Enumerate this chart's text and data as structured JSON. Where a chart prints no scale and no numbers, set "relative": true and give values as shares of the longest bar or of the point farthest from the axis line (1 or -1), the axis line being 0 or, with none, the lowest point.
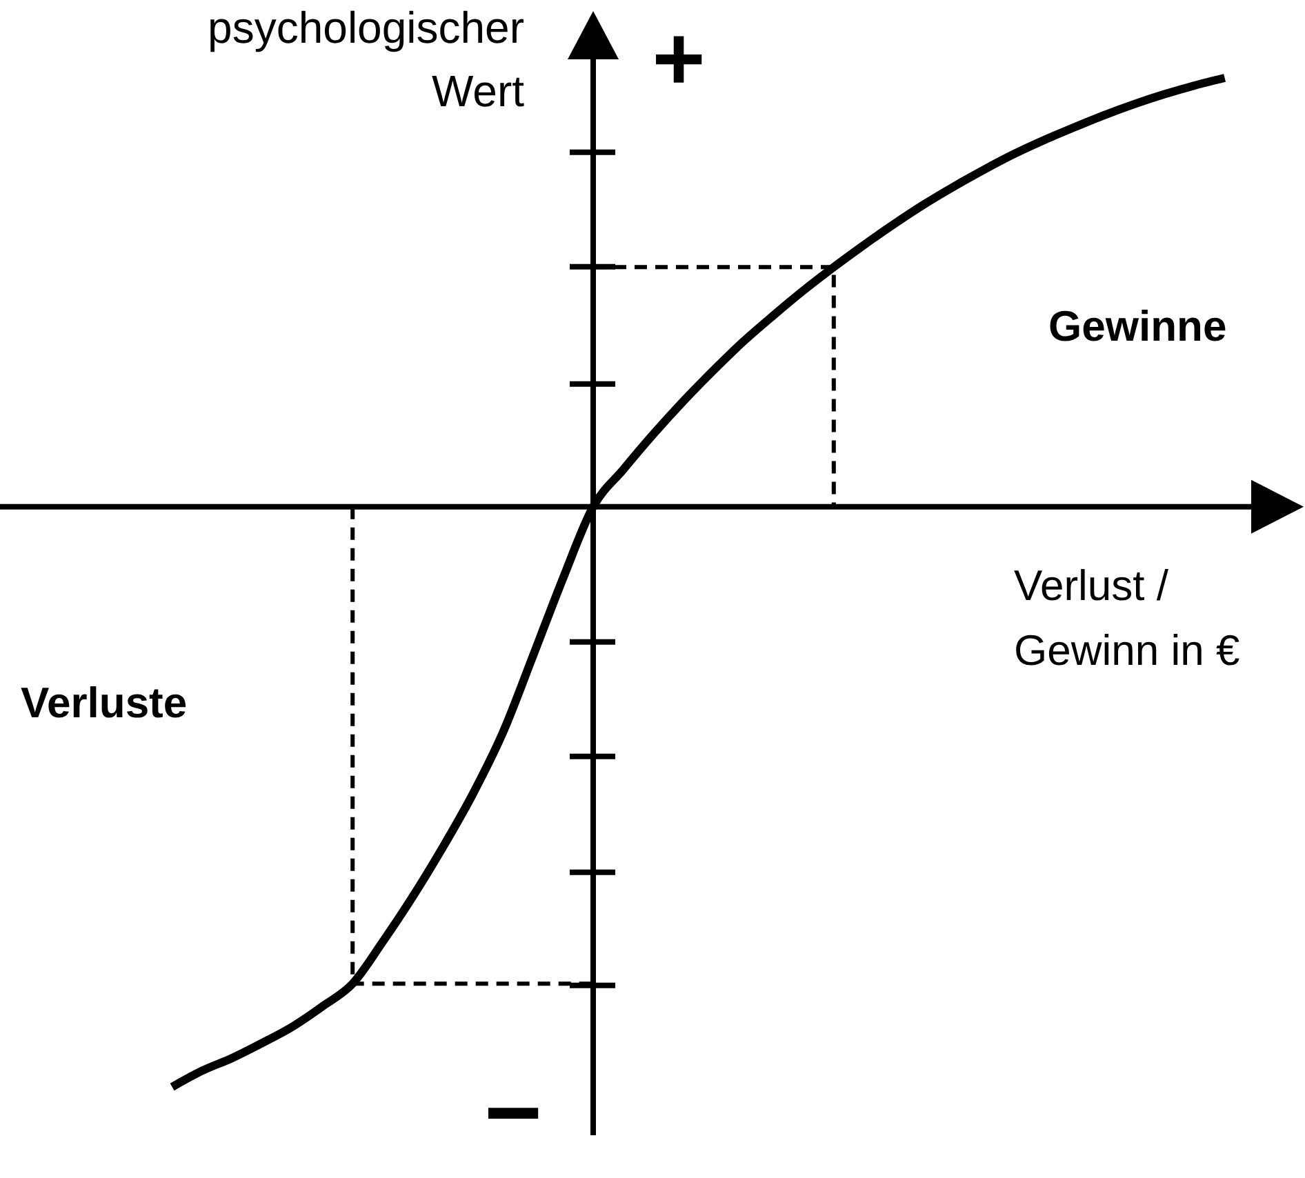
{
  "chart_data": {
    "type": "line",
    "relative": true,
    "xlabel": "Verlust /\nGewinn in €",
    "ylabel": "psychologischer\nWert",
    "annotations": [
      "+",
      "−",
      "Gewinne",
      "Verluste"
    ],
    "categories": [
      null,
      null,
      null,
      null,
      null,
      null,
      null,
      null,
      null,
      null,
      null,
      null,
      null,
      null,
      null,
      null,
      null,
      null,
      null,
      null,
      null,
      null,
      null,
      null,
      null,
      null,
      null,
      null,
      null,
      null,
      null,
      null,
      null,
      null,
      null,
      null
    ],
    "series": [
      {
        "color": "#000000",
        "values": [
          -1,
          -0.972,
          -0.95,
          -0.924,
          -0.896,
          -0.861,
          -0.822,
          -0.75,
          -0.672,
          -0.587,
          -0.495,
          -0.389,
          -0.257,
          -0.123,
          0,
          0.064,
          0.125,
          0.182,
          0.235,
          0.285,
          0.33,
          0.373,
          0.413,
          0.451,
          0.487,
          0.521,
          0.552,
          0.581,
          0.608,
          0.632,
          0.654,
          0.675,
          0.694,
          0.711,
          0.726,
          0.739
        ]
      },
      {
        "type": "step",
        "color": "#000000",
        "line_style": "dashed",
        "values": [
          null,
          null,
          null,
          null,
          null,
          null,
          0,
          -0.822,
          -0.822,
          -0.822,
          -0.822,
          -0.822,
          -0.822,
          -0.822,
          -0.822,
          null,
          null,
          null,
          null,
          null,
          null,
          null,
          null,
          null,
          null,
          null,
          null,
          null,
          null,
          null,
          null,
          null,
          null,
          null,
          null,
          null
        ]
      },
      {
        "type": "step",
        "color": "#000000",
        "line_style": "dashed",
        "values": [
          null,
          null,
          null,
          null,
          null,
          null,
          null,
          null,
          null,
          null,
          null,
          null,
          null,
          null,
          0.413,
          0.413,
          0.413,
          0.413,
          0.413,
          0.413,
          0.413,
          0.413,
          0.413,
          0,
          null,
          null,
          null,
          null,
          null,
          null,
          null,
          null,
          null,
          null,
          null,
          null
        ]
      }
    ]
  }
}
